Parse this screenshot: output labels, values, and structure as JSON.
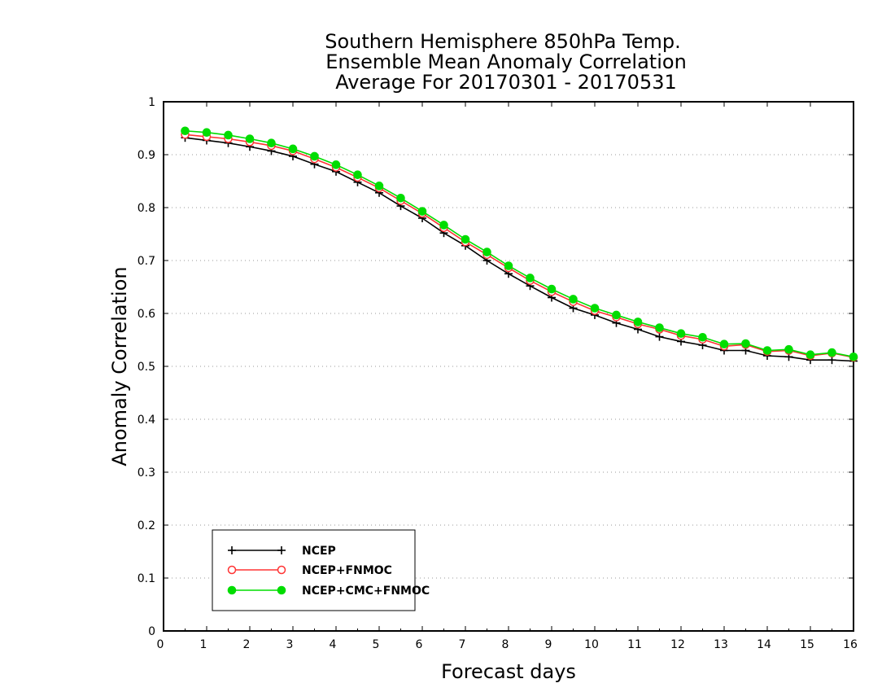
{
  "chart_data": {
    "type": "line",
    "title_lines": [
      "Southern Hemisphere 850hPa Temp.",
      "Ensemble Mean Anomaly Correlation",
      "Average For 20170301 - 20170531"
    ],
    "xlabel": "Forecast days",
    "ylabel": "Anomaly Correlation",
    "xlim": [
      0,
      16
    ],
    "ylim": [
      0,
      1
    ],
    "x_ticks": [
      0,
      1,
      2,
      3,
      4,
      5,
      6,
      7,
      8,
      9,
      10,
      11,
      12,
      13,
      14,
      15,
      16
    ],
    "y_ticks": [
      0,
      0.1,
      0.2,
      0.3,
      0.4,
      0.5,
      0.6,
      0.7,
      0.8,
      0.9,
      1
    ],
    "y_tick_labels": [
      "0",
      "0.1",
      "0.2",
      "0.3",
      "0.4",
      "0.5",
      "0.6",
      "0.7",
      "0.8",
      "0.9",
      "1"
    ],
    "grid": "horizontal dotted",
    "legend_position": "bottom-left",
    "x": [
      0.5,
      1,
      1.5,
      2,
      2.5,
      3,
      3.5,
      4,
      4.5,
      5,
      5.5,
      6,
      6.5,
      7,
      7.5,
      8,
      8.5,
      9,
      9.5,
      10,
      10.5,
      11,
      11.5,
      12,
      12.5,
      13,
      13.5,
      14,
      14.5,
      15,
      15.5,
      16
    ],
    "series": [
      {
        "name": "NCEP",
        "color": "#000000",
        "marker": "plus",
        "values": [
          0.932,
          0.927,
          0.922,
          0.915,
          0.907,
          0.897,
          0.882,
          0.868,
          0.848,
          0.828,
          0.803,
          0.78,
          0.752,
          0.728,
          0.7,
          0.675,
          0.652,
          0.63,
          0.61,
          0.597,
          0.582,
          0.57,
          0.556,
          0.547,
          0.54,
          0.53,
          0.53,
          0.52,
          0.518,
          0.512,
          0.512,
          0.51
        ]
      },
      {
        "name": "NCEP+FNMOC",
        "color": "#ff3333",
        "marker": "open-circle",
        "values": [
          0.938,
          0.934,
          0.93,
          0.924,
          0.917,
          0.907,
          0.892,
          0.876,
          0.857,
          0.837,
          0.813,
          0.789,
          0.762,
          0.735,
          0.711,
          0.686,
          0.662,
          0.641,
          0.622,
          0.605,
          0.593,
          0.58,
          0.57,
          0.558,
          0.551,
          0.538,
          0.541,
          0.528,
          0.53,
          0.52,
          0.525,
          0.517
        ]
      },
      {
        "name": "NCEP+CMC+FNMOC",
        "color": "#00dd00",
        "marker": "filled-circle",
        "values": [
          0.945,
          0.942,
          0.937,
          0.93,
          0.922,
          0.911,
          0.897,
          0.881,
          0.862,
          0.841,
          0.818,
          0.793,
          0.767,
          0.74,
          0.716,
          0.69,
          0.667,
          0.646,
          0.627,
          0.61,
          0.597,
          0.584,
          0.573,
          0.562,
          0.555,
          0.542,
          0.543,
          0.53,
          0.532,
          0.522,
          0.526,
          0.518
        ]
      }
    ]
  }
}
